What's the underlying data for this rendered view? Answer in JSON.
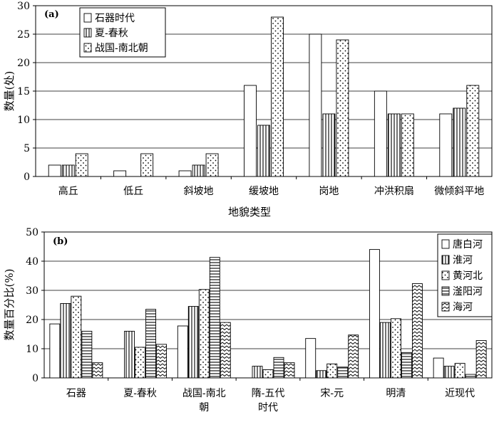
{
  "chart_data": [
    {
      "type": "bar",
      "panel_label": "(a)",
      "title": "",
      "xlabel": "地貌类型",
      "ylabel": "数量(处)",
      "ylim": [
        0,
        30
      ],
      "yticks": [
        0,
        5,
        10,
        15,
        20,
        25,
        30
      ],
      "grid": true,
      "legend_position": "top-left",
      "categories": [
        "高丘",
        "低丘",
        "斜坡地",
        "缓坡地",
        "岗地",
        "冲洪积扇",
        "微倾斜平地"
      ],
      "series": [
        {
          "name": "石器时代",
          "pattern": "plain",
          "values": [
            2,
            1,
            1,
            16,
            25,
            15,
            11
          ]
        },
        {
          "name": "夏-春秋",
          "pattern": "vlines",
          "values": [
            2,
            0,
            2,
            9,
            11,
            11,
            12
          ]
        },
        {
          "name": "战国-南北朝",
          "pattern": "dots",
          "values": [
            4,
            4,
            4,
            28,
            24,
            11,
            16
          ]
        }
      ]
    },
    {
      "type": "bar",
      "panel_label": "(b)",
      "title": "",
      "xlabel": "",
      "ylabel": "数量百分比(%)",
      "ylim": [
        0,
        50
      ],
      "yticks": [
        0,
        10,
        20,
        30,
        40,
        50
      ],
      "grid": true,
      "legend_position": "top-right",
      "categories": [
        "石器",
        "夏-春秋",
        "战国-南北朝",
        "隋-五代时代",
        "宋-元",
        "明清",
        "近现代"
      ],
      "category_lines": [
        [
          "石器"
        ],
        [
          "夏-春秋"
        ],
        [
          "战国-南北",
          "朝"
        ],
        [
          "隋-五代",
          "时代"
        ],
        [
          "宋-元"
        ],
        [
          "明清"
        ],
        [
          "近现代"
        ]
      ],
      "series": [
        {
          "name": "唐白河",
          "pattern": "plain",
          "values": [
            18.5,
            0,
            17.8,
            0,
            13.5,
            44,
            6.8
          ]
        },
        {
          "name": "淮河",
          "pattern": "vlines",
          "values": [
            25.5,
            16,
            24.5,
            4,
            2.5,
            19,
            4
          ]
        },
        {
          "name": "黄河北",
          "pattern": "dots",
          "values": [
            28,
            10.5,
            30.3,
            2.8,
            4.8,
            20.3,
            5
          ]
        },
        {
          "name": "滏阳河",
          "pattern": "hlines",
          "values": [
            16,
            23.5,
            41.3,
            7,
            3.7,
            8.7,
            1.2
          ]
        },
        {
          "name": "海河",
          "pattern": "zigzag",
          "values": [
            5.2,
            11.5,
            19,
            5.2,
            14.7,
            32.3,
            12.8
          ]
        }
      ]
    }
  ]
}
